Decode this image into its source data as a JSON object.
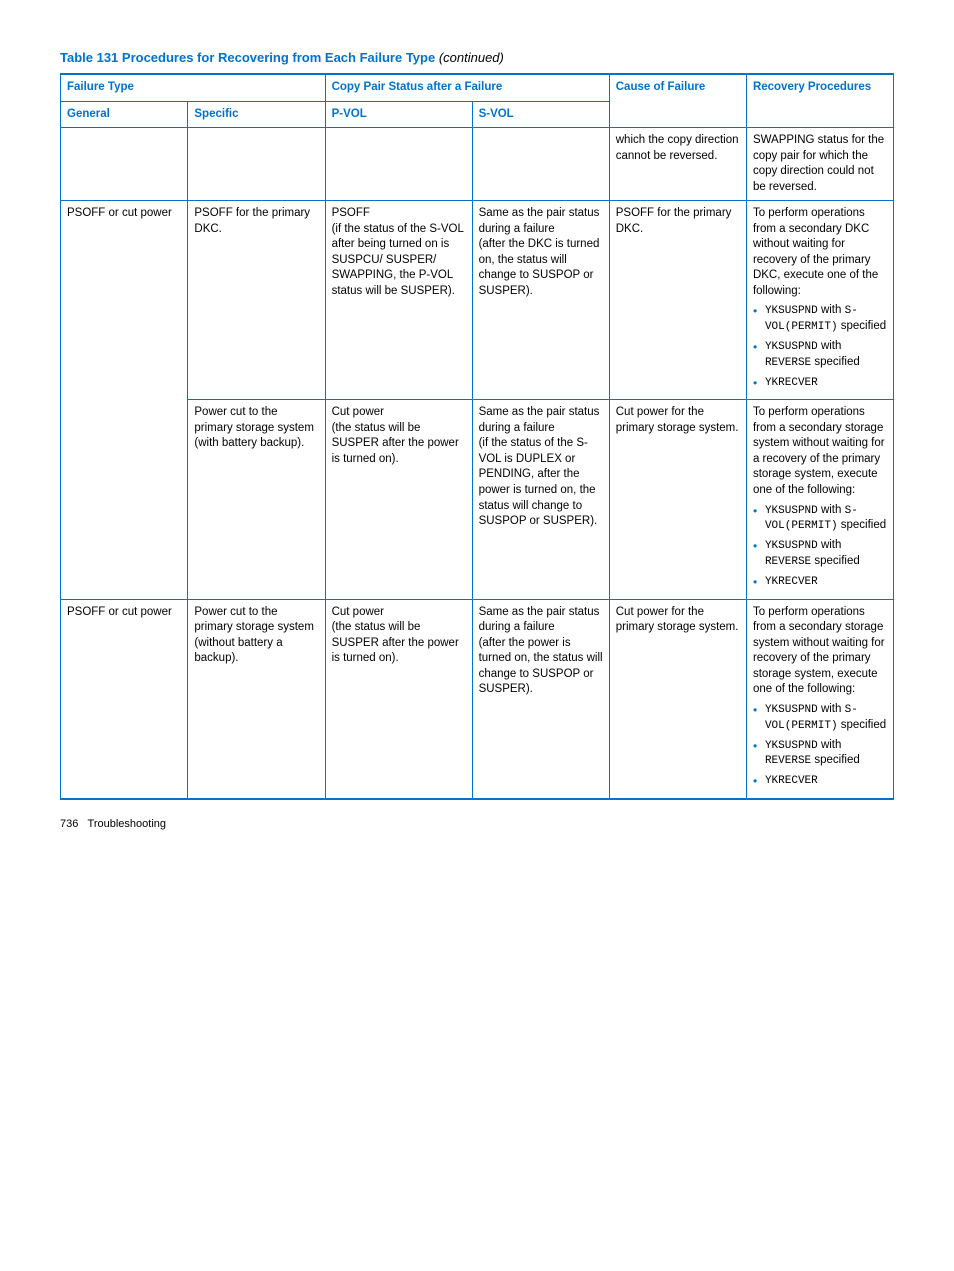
{
  "title": {
    "main": "Table 131 Procedures for Recovering from Each Failure Type",
    "continued": " (continued)"
  },
  "header": {
    "failure_type": "Failure Type",
    "copy_pair": "Copy Pair Status after a Failure",
    "cause": "Cause of Failure",
    "recovery": "Recovery Procedures",
    "general": "General",
    "specific": "Specific",
    "pvol": "P-VOL",
    "svol": "S-VOL"
  },
  "rows": [
    {
      "general": "",
      "specific": "",
      "pvol": "",
      "svol": "",
      "cause": "which the copy direction cannot be reversed.",
      "recovery_text": "SWAPPING status for the copy pair for which the copy direction could not be reversed.",
      "bullets": []
    },
    {
      "general": "PSOFF or cut power",
      "specific": "PSOFF for the primary DKC.",
      "pvol": "PSOFF\n(if the status of the S-VOL after being turned on is SUSPCU/ SUSPER/ SWAPPING, the P-VOL status will be SUSPER).",
      "svol": "Same as the pair status during a failure\n(after the DKC is turned on, the status will change to SUSPOP or SUSPER).",
      "cause": "PSOFF for the primary DKC.",
      "recovery_text": "To perform operations from a secondary DKC without waiting for recovery of the primary DKC, execute one of the following:",
      "bullets": [
        {
          "monoparts": [
            "YKSUSPND",
            " with ",
            "S-VOL(PERMIT)",
            " specified"
          ]
        },
        {
          "monoparts": [
            "YKSUSPND",
            " with ",
            "REVERSE",
            " specified"
          ]
        },
        {
          "monoparts": [
            "YKRECVER"
          ]
        }
      ]
    },
    {
      "general": "",
      "general_continues": true,
      "specific": "Power cut to the primary storage system (with battery backup).",
      "pvol": "Cut power\n(the status will be SUSPER after the power is turned on).",
      "svol": "Same as the pair status during a failure\n(if the status of the S-VOL is DUPLEX or PENDING, after the power is turned on, the status will change to SUSPOP or SUSPER).",
      "cause": "Cut power for the primary storage system.",
      "recovery_text": "To perform operations from a secondary storage system without waiting for a recovery of the primary storage system, execute one of the following:",
      "bullets": [
        {
          "monoparts": [
            "YKSUSPND",
            " with ",
            "S-VOL(PERMIT)",
            " specified"
          ]
        },
        {
          "monoparts": [
            "YKSUSPND",
            " with ",
            "REVERSE",
            " specified"
          ]
        },
        {
          "monoparts": [
            "YKRECVER"
          ]
        }
      ]
    },
    {
      "general": "PSOFF or cut power",
      "specific": "Power cut to the primary storage system (without battery a backup).",
      "pvol": "Cut power\n(the status will be SUSPER after the power is turned on).",
      "svol": "Same as the pair status during a failure\n(after the power is turned on, the status will change to SUSPOP or SUSPER).",
      "cause": "Cut power for the primary storage system.",
      "recovery_text": "To perform operations from a secondary storage system without waiting for recovery of the primary storage system, execute one of the following:",
      "bullets": [
        {
          "monoparts": [
            "YKSUSPND",
            " with ",
            "S-VOL(PERMIT)",
            " specified"
          ]
        },
        {
          "monoparts": [
            "YKSUSPND",
            " with ",
            "REVERSE",
            " specified"
          ]
        },
        {
          "monoparts": [
            "YKRECVER"
          ]
        }
      ]
    }
  ],
  "footer": {
    "page": "736",
    "section": "Troubleshooting"
  }
}
